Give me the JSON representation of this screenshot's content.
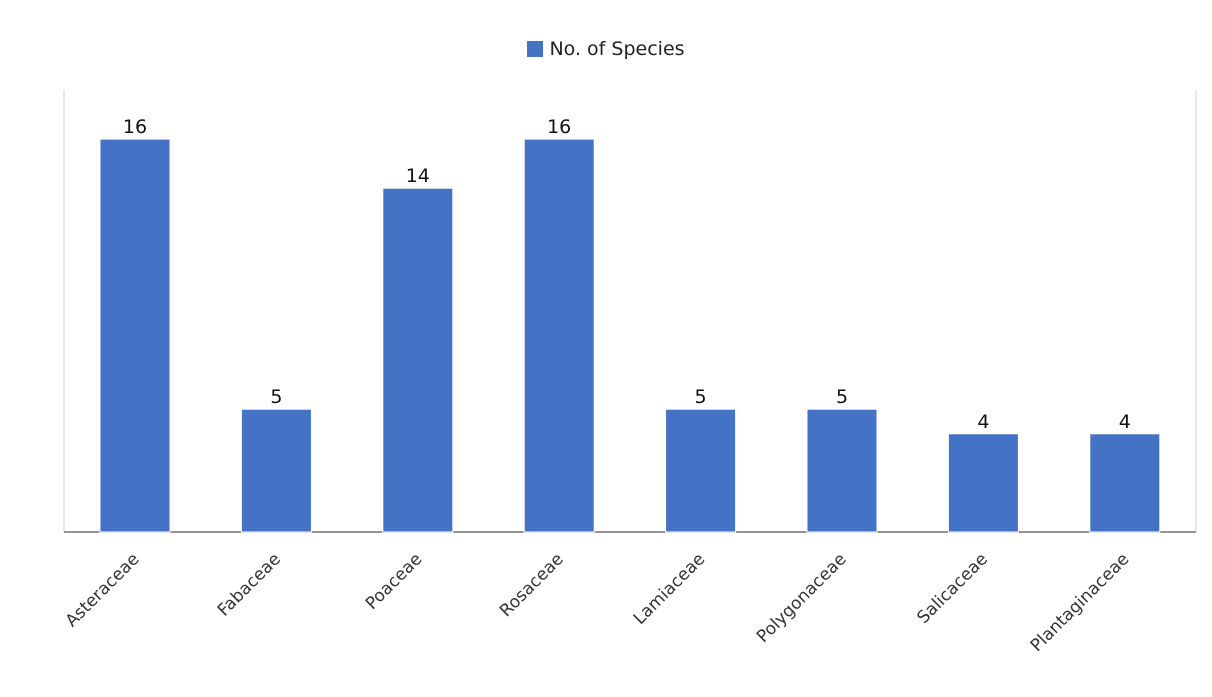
{
  "chart_data": {
    "type": "bar",
    "title": "",
    "xlabel": "",
    "ylabel": "",
    "categories": [
      "Asteraceae",
      "Fabaceae",
      "Poaceae",
      "Rosaceae",
      "Lamiaceae",
      "Polygonaceae",
      "Salicaceae",
      "Plantaginaceae"
    ],
    "series": [
      {
        "name": "No. of Species",
        "values": [
          16,
          5,
          14,
          16,
          5,
          5,
          4,
          4
        ],
        "color": "#4472C4"
      }
    ],
    "ylim": [
      0,
      18
    ],
    "grid": false,
    "legend_position": "top-center",
    "data_labels": true
  }
}
